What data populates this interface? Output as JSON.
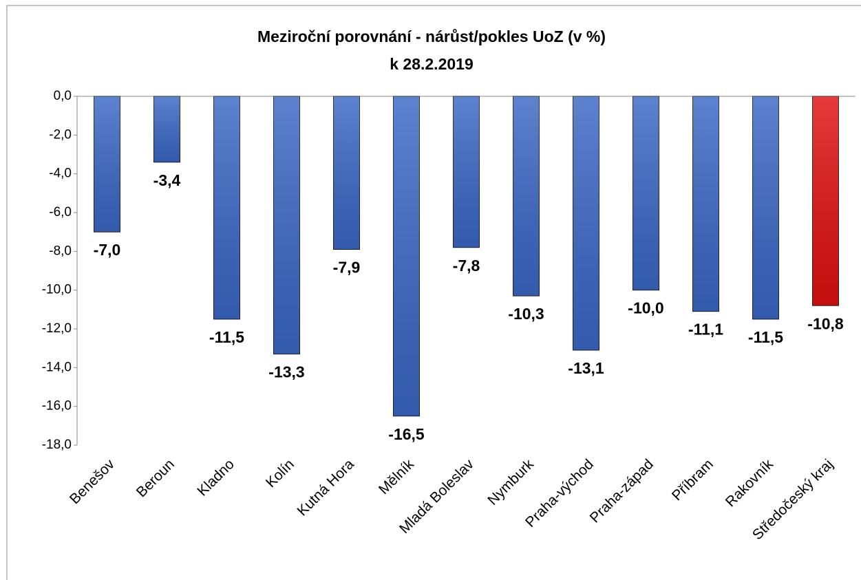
{
  "chart_data": {
    "type": "bar",
    "title": "Meziroční porovnání - nárůst/pokles UoZ (v %)",
    "subtitle": "k 28.2.2019",
    "categories": [
      "Benešov",
      "Beroun",
      "Kladno",
      "Kolín",
      "Kutná Hora",
      "Mělník",
      "Mladá Boleslav",
      "Nymburk",
      "Praha-východ",
      "Praha-západ",
      "Příbram",
      "Rakovník",
      "Středočeský kraj"
    ],
    "values": [
      -7.0,
      -3.4,
      -11.5,
      -13.3,
      -7.9,
      -16.5,
      -7.8,
      -10.3,
      -13.1,
      -10.0,
      -11.1,
      -11.5,
      -10.8
    ],
    "value_labels": [
      "-7,0",
      "-3,4",
      "-11,5",
      "-13,3",
      "-7,9",
      "-16,5",
      "-7,8",
      "-10,3",
      "-13,1",
      "-10,0",
      "-11,1",
      "-11,5",
      "-10,8"
    ],
    "colors": [
      "#3a67c4",
      "#3a67c4",
      "#3a67c4",
      "#3a67c4",
      "#3a67c4",
      "#3a67c4",
      "#3a67c4",
      "#3a67c4",
      "#3a67c4",
      "#3a67c4",
      "#3a67c4",
      "#3a67c4",
      "#e01010"
    ],
    "ylim": [
      -18,
      0
    ],
    "yticks": [
      {
        "value": 0,
        "label": "0,0"
      },
      {
        "value": -2,
        "label": "-2,0"
      },
      {
        "value": -4,
        "label": "-4,0"
      },
      {
        "value": -6,
        "label": "-6,0"
      },
      {
        "value": -8,
        "label": "-8,0"
      },
      {
        "value": -10,
        "label": "-10,0"
      },
      {
        "value": -12,
        "label": "-12,0"
      },
      {
        "value": -14,
        "label": "-14,0"
      },
      {
        "value": -16,
        "label": "-16,0"
      },
      {
        "value": -18,
        "label": "-18,0"
      }
    ],
    "grid": false
  }
}
